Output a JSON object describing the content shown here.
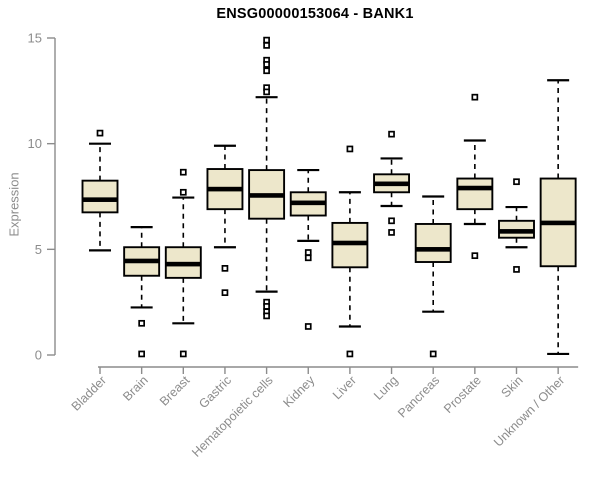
{
  "chart_data": {
    "type": "boxplot",
    "title": "ENSG00000153064 - BANK1",
    "ylabel": "Expression",
    "xlabel": "",
    "ylim": [
      0,
      15
    ],
    "yticks": [
      0,
      5,
      10,
      15
    ],
    "grid": false,
    "legend": null,
    "colors": {
      "box_fill": "#EDE7CB",
      "box_stroke": "#000000",
      "median": "#000000",
      "whisker": "#000000",
      "outlier_stroke": "#000000",
      "outlier_fill": "#FFFFFF",
      "axis": "#8C8C8C",
      "title": "#000000",
      "background": "#FFFFFF"
    },
    "categories": [
      "Bladder",
      "Brain",
      "Breast",
      "Gastric",
      "Hematopoietic cells",
      "Kidney",
      "Liver",
      "Lung",
      "Pancreas",
      "Prostate",
      "Skin",
      "Unknown / Other"
    ],
    "boxes": [
      {
        "category": "Bladder",
        "whisker_low": 4.95,
        "q1": 6.75,
        "median": 7.35,
        "q3": 8.25,
        "whisker_high": 10.0,
        "outliers": [
          10.5
        ]
      },
      {
        "category": "Brain",
        "whisker_low": 2.25,
        "q1": 3.75,
        "median": 4.45,
        "q3": 5.1,
        "whisker_high": 6.05,
        "outliers": [
          1.5,
          0.05
        ]
      },
      {
        "category": "Breast",
        "whisker_low": 1.5,
        "q1": 3.65,
        "median": 4.3,
        "q3": 5.1,
        "whisker_high": 7.45,
        "outliers": [
          8.65,
          7.7,
          0.05
        ]
      },
      {
        "category": "Gastric",
        "whisker_low": 5.1,
        "q1": 6.9,
        "median": 7.85,
        "q3": 8.8,
        "whisker_high": 9.9,
        "outliers": [
          4.1,
          2.95
        ]
      },
      {
        "category": "Hematopoietic cells",
        "whisker_low": 3.0,
        "q1": 6.45,
        "median": 7.55,
        "q3": 8.75,
        "whisker_high": 12.2,
        "outliers": [
          14.9,
          14.65,
          13.95,
          13.75,
          13.45,
          12.65,
          12.45,
          2.5,
          2.3,
          2.05,
          1.85
        ]
      },
      {
        "category": "Kidney",
        "whisker_low": 5.4,
        "q1": 6.6,
        "median": 7.2,
        "q3": 7.7,
        "whisker_high": 8.75,
        "outliers": [
          4.85,
          4.6,
          1.35
        ]
      },
      {
        "category": "Liver",
        "whisker_low": 1.35,
        "q1": 4.15,
        "median": 5.3,
        "q3": 6.25,
        "whisker_high": 7.7,
        "outliers": [
          9.75,
          0.05
        ]
      },
      {
        "category": "Lung",
        "whisker_low": 7.05,
        "q1": 7.7,
        "median": 8.1,
        "q3": 8.55,
        "whisker_high": 9.3,
        "outliers": [
          10.45,
          6.35,
          5.8
        ]
      },
      {
        "category": "Pancreas",
        "whisker_low": 2.05,
        "q1": 4.4,
        "median": 5.0,
        "q3": 6.2,
        "whisker_high": 7.5,
        "outliers": [
          0.05
        ]
      },
      {
        "category": "Prostate",
        "whisker_low": 6.2,
        "q1": 6.9,
        "median": 7.9,
        "q3": 8.35,
        "whisker_high": 10.15,
        "outliers": [
          12.2,
          4.7
        ]
      },
      {
        "category": "Skin",
        "whisker_low": 5.1,
        "q1": 5.55,
        "median": 5.85,
        "q3": 6.35,
        "whisker_high": 7.0,
        "outliers": [
          8.2,
          4.05
        ]
      },
      {
        "category": "Unknown / Other",
        "whisker_low": 0.05,
        "q1": 4.2,
        "median": 6.25,
        "q3": 8.35,
        "whisker_high": 13.0,
        "outliers": []
      }
    ]
  }
}
